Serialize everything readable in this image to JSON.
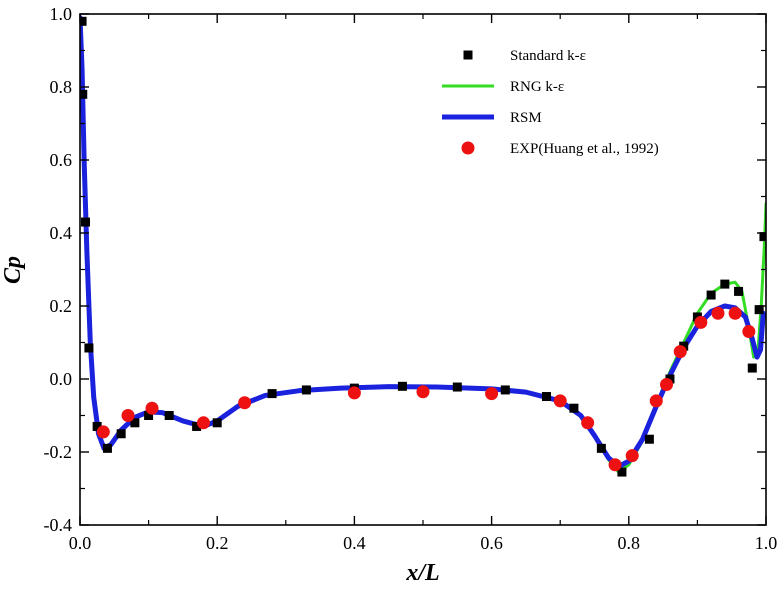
{
  "chart_data": {
    "type": "line",
    "title": "",
    "xlabel": "x/L",
    "ylabel": "Cp",
    "xlim": [
      0.0,
      1.0
    ],
    "ylim": [
      -0.4,
      1.0
    ],
    "grid": false,
    "legend_position": "top-right",
    "x_ticks": [
      "0.0",
      "0.2",
      "0.4",
      "0.6",
      "0.8",
      "1.0"
    ],
    "y_ticks": [
      "-0.4",
      "-0.2",
      "0.0",
      "0.2",
      "0.4",
      "0.6",
      "0.8",
      "1.0"
    ],
    "series": [
      {
        "name": "Standard k-ε",
        "style": "square",
        "color": "#000000",
        "points": [
          [
            0.003,
            0.98
          ],
          [
            0.004,
            0.78
          ],
          [
            0.008,
            0.43
          ],
          [
            0.013,
            0.085
          ],
          [
            0.025,
            -0.13
          ],
          [
            0.04,
            -0.19
          ],
          [
            0.06,
            -0.15
          ],
          [
            0.08,
            -0.12
          ],
          [
            0.1,
            -0.1
          ],
          [
            0.13,
            -0.1
          ],
          [
            0.17,
            -0.13
          ],
          [
            0.2,
            -0.12
          ],
          [
            0.24,
            -0.065
          ],
          [
            0.28,
            -0.04
          ],
          [
            0.33,
            -0.03
          ],
          [
            0.4,
            -0.025
          ],
          [
            0.47,
            -0.02
          ],
          [
            0.55,
            -0.022
          ],
          [
            0.62,
            -0.03
          ],
          [
            0.68,
            -0.048
          ],
          [
            0.72,
            -0.08
          ],
          [
            0.76,
            -0.19
          ],
          [
            0.79,
            -0.255
          ],
          [
            0.83,
            -0.165
          ],
          [
            0.86,
            0.0
          ],
          [
            0.88,
            0.09
          ],
          [
            0.9,
            0.17
          ],
          [
            0.92,
            0.23
          ],
          [
            0.94,
            0.26
          ],
          [
            0.96,
            0.24
          ],
          [
            0.98,
            0.03
          ],
          [
            0.99,
            0.19
          ],
          [
            0.997,
            0.39
          ]
        ]
      },
      {
        "name": "RNG k-ε",
        "style": "line",
        "color": "#33dd22",
        "points": [
          [
            0.0,
            0.99
          ],
          [
            0.003,
            0.85
          ],
          [
            0.006,
            0.6
          ],
          [
            0.01,
            0.35
          ],
          [
            0.015,
            0.1
          ],
          [
            0.02,
            -0.05
          ],
          [
            0.027,
            -0.15
          ],
          [
            0.035,
            -0.19
          ],
          [
            0.045,
            -0.18
          ],
          [
            0.06,
            -0.14
          ],
          [
            0.08,
            -0.105
          ],
          [
            0.1,
            -0.09
          ],
          [
            0.12,
            -0.092
          ],
          [
            0.15,
            -0.115
          ],
          [
            0.18,
            -0.13
          ],
          [
            0.2,
            -0.115
          ],
          [
            0.23,
            -0.075
          ],
          [
            0.27,
            -0.045
          ],
          [
            0.32,
            -0.032
          ],
          [
            0.38,
            -0.025
          ],
          [
            0.45,
            -0.021
          ],
          [
            0.52,
            -0.022
          ],
          [
            0.6,
            -0.027
          ],
          [
            0.65,
            -0.036
          ],
          [
            0.7,
            -0.06
          ],
          [
            0.73,
            -0.1
          ],
          [
            0.75,
            -0.155
          ],
          [
            0.77,
            -0.22
          ],
          [
            0.785,
            -0.255
          ],
          [
            0.8,
            -0.235
          ],
          [
            0.82,
            -0.17
          ],
          [
            0.84,
            -0.07
          ],
          [
            0.86,
            0.02
          ],
          [
            0.88,
            0.1
          ],
          [
            0.9,
            0.18
          ],
          [
            0.92,
            0.235
          ],
          [
            0.94,
            0.26
          ],
          [
            0.955,
            0.265
          ],
          [
            0.965,
            0.24
          ],
          [
            0.975,
            0.14
          ],
          [
            0.982,
            0.06
          ],
          [
            0.988,
            0.07
          ],
          [
            0.993,
            0.2
          ],
          [
            0.998,
            0.38
          ],
          [
            1.0,
            0.48
          ]
        ]
      },
      {
        "name": "RSM",
        "style": "line",
        "color": "#1a22dd",
        "points": [
          [
            0.0,
            0.99
          ],
          [
            0.003,
            0.85
          ],
          [
            0.006,
            0.6
          ],
          [
            0.01,
            0.35
          ],
          [
            0.015,
            0.1
          ],
          [
            0.02,
            -0.05
          ],
          [
            0.027,
            -0.15
          ],
          [
            0.035,
            -0.19
          ],
          [
            0.045,
            -0.18
          ],
          [
            0.06,
            -0.14
          ],
          [
            0.08,
            -0.105
          ],
          [
            0.1,
            -0.09
          ],
          [
            0.12,
            -0.092
          ],
          [
            0.15,
            -0.115
          ],
          [
            0.18,
            -0.13
          ],
          [
            0.2,
            -0.115
          ],
          [
            0.23,
            -0.075
          ],
          [
            0.27,
            -0.045
          ],
          [
            0.32,
            -0.032
          ],
          [
            0.38,
            -0.025
          ],
          [
            0.45,
            -0.021
          ],
          [
            0.52,
            -0.022
          ],
          [
            0.6,
            -0.027
          ],
          [
            0.65,
            -0.036
          ],
          [
            0.7,
            -0.06
          ],
          [
            0.73,
            -0.1
          ],
          [
            0.75,
            -0.155
          ],
          [
            0.77,
            -0.215
          ],
          [
            0.785,
            -0.24
          ],
          [
            0.8,
            -0.225
          ],
          [
            0.82,
            -0.165
          ],
          [
            0.84,
            -0.075
          ],
          [
            0.86,
            0.01
          ],
          [
            0.88,
            0.085
          ],
          [
            0.9,
            0.145
          ],
          [
            0.92,
            0.185
          ],
          [
            0.94,
            0.2
          ],
          [
            0.955,
            0.195
          ],
          [
            0.97,
            0.17
          ],
          [
            0.98,
            0.11
          ],
          [
            0.987,
            0.06
          ],
          [
            0.992,
            0.08
          ],
          [
            0.996,
            0.18
          ]
        ]
      },
      {
        "name": "EXP(Huang et al., 1992)",
        "style": "circle",
        "color": "#ee1111",
        "points": [
          [
            0.034,
            -0.145
          ],
          [
            0.07,
            -0.1
          ],
          [
            0.105,
            -0.08
          ],
          [
            0.18,
            -0.12
          ],
          [
            0.24,
            -0.065
          ],
          [
            0.4,
            -0.038
          ],
          [
            0.5,
            -0.035
          ],
          [
            0.6,
            -0.04
          ],
          [
            0.7,
            -0.06
          ],
          [
            0.74,
            -0.12
          ],
          [
            0.78,
            -0.235
          ],
          [
            0.805,
            -0.21
          ],
          [
            0.84,
            -0.06
          ],
          [
            0.855,
            -0.015
          ],
          [
            0.875,
            0.075
          ],
          [
            0.905,
            0.155
          ],
          [
            0.93,
            0.18
          ],
          [
            0.955,
            0.18
          ],
          [
            0.975,
            0.13
          ]
        ]
      }
    ]
  }
}
